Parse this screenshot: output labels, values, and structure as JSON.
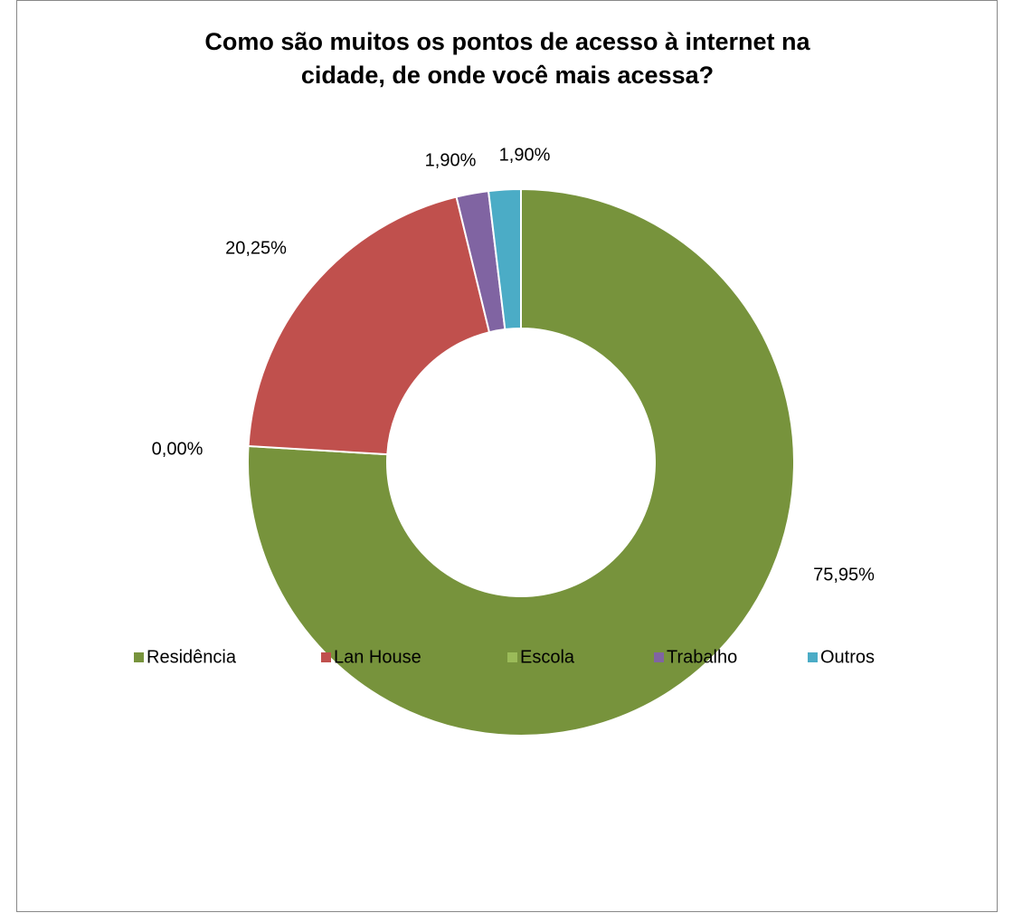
{
  "chart_data": {
    "type": "donut",
    "title": [
      "Como são muitos os pontos de acesso à internet na",
      "cidade, de onde você mais acessa?"
    ],
    "categories": [
      "Residência",
      "Lan House",
      "Escola",
      "Trabalho",
      "Outros"
    ],
    "values": [
      75.95,
      20.25,
      0,
      1.9,
      1.9
    ],
    "value_labels": [
      "75,95%",
      "20,25%",
      "0,00%",
      "1,90%",
      "1,90%"
    ],
    "colors": [
      "#77933c",
      "#c0504d",
      "#9bbb59",
      "#8064a2",
      "#4bacc6"
    ],
    "legend": "bottom"
  }
}
